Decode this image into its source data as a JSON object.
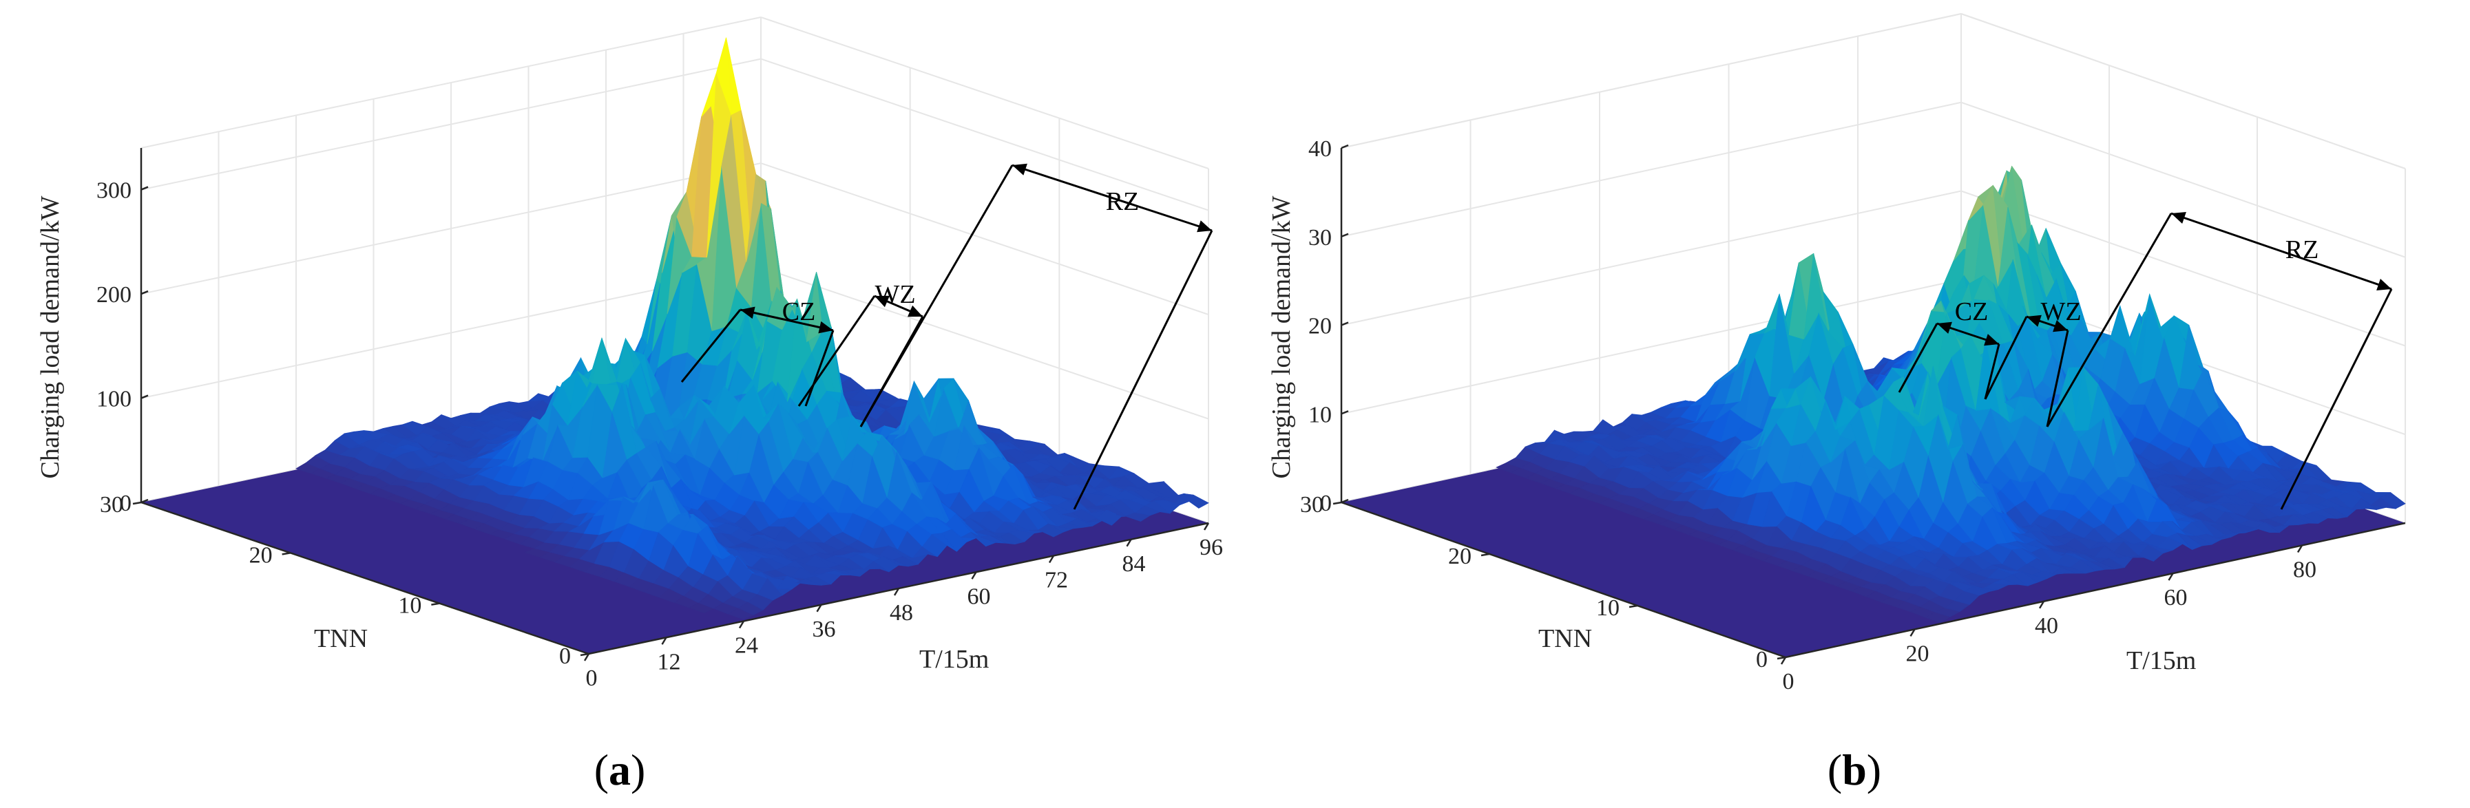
{
  "chart_data": [
    {
      "type": "surface3d",
      "panel": "a",
      "caption": "(a)",
      "caption_open": "(",
      "caption_letter": "a",
      "caption_close": ")",
      "title": "",
      "xlabel": "T/15m",
      "ylabel": "TNN",
      "zlabel": "Charging load demand/kW",
      "xlim": [
        0,
        96
      ],
      "ylim": [
        0,
        30
      ],
      "zlim": [
        0,
        340
      ],
      "xticks": [
        "0",
        "12",
        "24",
        "36",
        "48",
        "60",
        "72",
        "84",
        "96"
      ],
      "yticks": [
        "0",
        "10",
        "20",
        "30"
      ],
      "zticks": [
        "0",
        "100",
        "200",
        "300"
      ],
      "grid": true,
      "colormap": "parula",
      "zones": [
        {
          "label": "CZ",
          "t_range": [
            32,
            40
          ]
        },
        {
          "label": "WZ",
          "t_range": [
            40,
            48
          ]
        },
        {
          "label": "RZ",
          "t_range": [
            56,
            96
          ]
        }
      ],
      "peaks": [
        {
          "t": 38,
          "tnn": 16,
          "z": 120
        },
        {
          "t": 46,
          "tnn": 18,
          "z": 110
        },
        {
          "t": 52,
          "tnn": 12,
          "z": 100
        },
        {
          "t": 58,
          "tnn": 6,
          "z": 80
        },
        {
          "t": 62,
          "tnn": 13,
          "z": 175
        },
        {
          "t": 67,
          "tnn": 20,
          "z": 310
        },
        {
          "t": 74,
          "tnn": 8,
          "z": 95
        },
        {
          "t": 28,
          "tnn": 8,
          "z": 70
        }
      ]
    },
    {
      "type": "surface3d",
      "panel": "b",
      "caption": "(b)",
      "caption_open": "(",
      "caption_letter": "b",
      "caption_close": ")",
      "title": "",
      "xlabel": "T/15m",
      "ylabel": "TNN",
      "zlabel": "Charging load demand/kW",
      "xlim": [
        0,
        96
      ],
      "ylim": [
        0,
        30
      ],
      "zlim": [
        0,
        40
      ],
      "xticks": [
        "0",
        "20",
        "40",
        "60",
        "80"
      ],
      "yticks": [
        "0",
        "10",
        "20",
        "30"
      ],
      "zticks": [
        "0",
        "10",
        "20",
        "30",
        "40"
      ],
      "grid": true,
      "colormap": "parula",
      "zones": [
        {
          "label": "CZ",
          "t_range": [
            30,
            38
          ]
        },
        {
          "label": "WZ",
          "t_range": [
            38,
            46
          ]
        },
        {
          "label": "RZ",
          "t_range": [
            54,
            96
          ]
        }
      ],
      "peaks": [
        {
          "t": 36,
          "tnn": 14,
          "z": 14
        },
        {
          "t": 44,
          "tnn": 10,
          "z": 16
        },
        {
          "t": 52,
          "tnn": 22,
          "z": 19
        },
        {
          "t": 58,
          "tnn": 14,
          "z": 17
        },
        {
          "t": 64,
          "tnn": 8,
          "z": 12
        },
        {
          "t": 70,
          "tnn": 18,
          "z": 15
        },
        {
          "t": 78,
          "tnn": 20,
          "z": 20
        },
        {
          "t": 86,
          "tnn": 22,
          "z": 22
        },
        {
          "t": 90,
          "tnn": 14,
          "z": 14
        }
      ]
    }
  ]
}
